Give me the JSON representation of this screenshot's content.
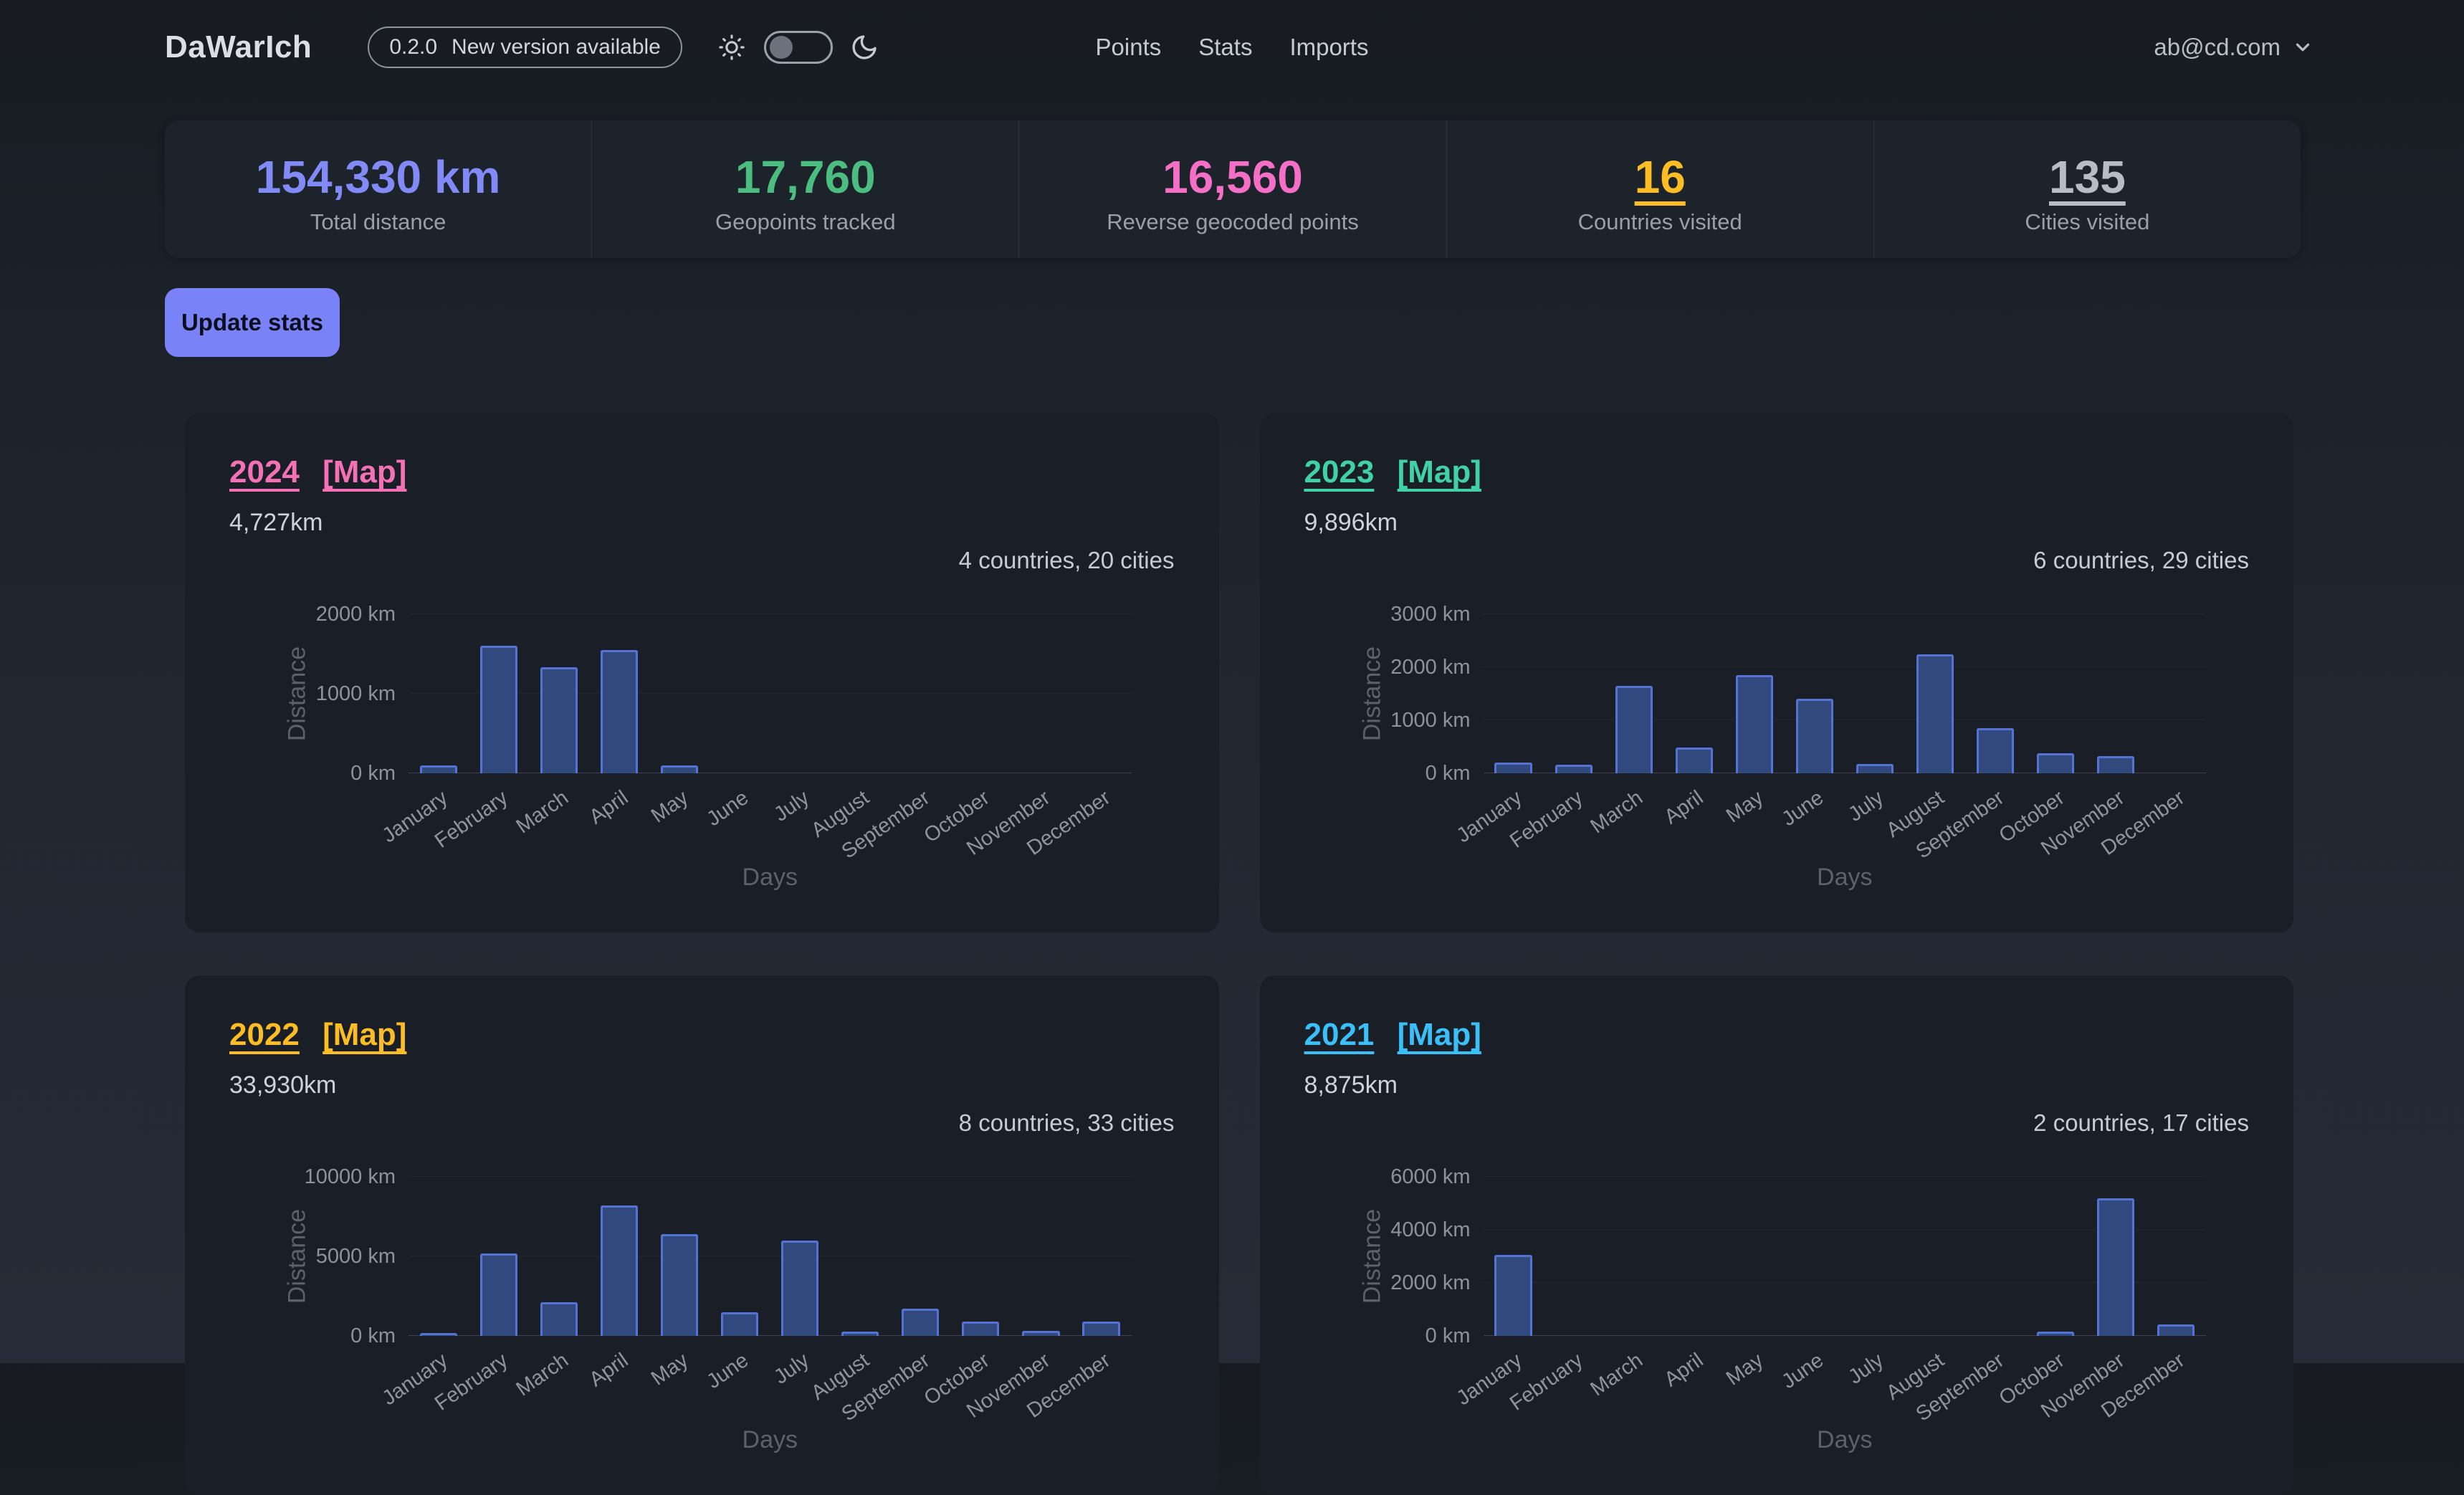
{
  "navbar": {
    "brand": "DaWarIch",
    "version_badge": {
      "version": "0.2.0",
      "label": "New version available"
    },
    "links": [
      "Points",
      "Stats",
      "Imports"
    ],
    "user_email": "ab@cd.com"
  },
  "stats": [
    {
      "value": "154,330 km",
      "label": "Total distance",
      "color": "#828af8",
      "link": false
    },
    {
      "value": "17,760",
      "label": "Geopoints tracked",
      "color": "#4bbd7f",
      "link": false
    },
    {
      "value": "16,560",
      "label": "Reverse geocoded points",
      "color": "#f56fc6",
      "link": false
    },
    {
      "value": "16",
      "label": "Countries visited",
      "color": "#fbbd23",
      "link": true
    },
    {
      "value": "135",
      "label": "Cities visited",
      "color": "#b8bdc5",
      "link": true
    }
  ],
  "update_button_label": "Update stats",
  "year_cards": [
    {
      "year": "2024",
      "map_label": "[Map]",
      "color": "#f471b5",
      "distance": "4,727km",
      "summary": "4 countries, 20 cities"
    },
    {
      "year": "2023",
      "map_label": "[Map]",
      "color": "#41d1a7",
      "distance": "9,896km",
      "summary": "6 countries, 29 cities"
    },
    {
      "year": "2022",
      "map_label": "[Map]",
      "color": "#fbbd23",
      "distance": "33,930km",
      "summary": "8 countries, 33 cities"
    },
    {
      "year": "2021",
      "map_label": "[Map]",
      "color": "#3abff8",
      "distance": "8,875km",
      "summary": "2 countries, 17 cities"
    }
  ],
  "chart_data": [
    {
      "type": "bar",
      "title": "2024 monthly distance",
      "categories": [
        "January",
        "February",
        "March",
        "April",
        "May",
        "June",
        "July",
        "August",
        "September",
        "October",
        "November",
        "December"
      ],
      "values": [
        100,
        1600,
        1330,
        1550,
        100,
        0,
        0,
        0,
        0,
        0,
        0,
        0
      ],
      "xlabel": "Days",
      "ylabel": "Distance",
      "ylim": [
        0,
        2000
      ],
      "yticks": [
        0,
        1000,
        2000
      ],
      "ytick_suffix": " km",
      "grid": true,
      "legend": false
    },
    {
      "type": "bar",
      "title": "2023 monthly distance",
      "categories": [
        "January",
        "February",
        "March",
        "April",
        "May",
        "June",
        "July",
        "August",
        "September",
        "October",
        "November",
        "December"
      ],
      "values": [
        200,
        160,
        1650,
        480,
        1850,
        1400,
        180,
        2250,
        850,
        380,
        330,
        0
      ],
      "xlabel": "Days",
      "ylabel": "Distance",
      "ylim": [
        0,
        3000
      ],
      "yticks": [
        0,
        1000,
        2000,
        3000
      ],
      "ytick_suffix": " km",
      "grid": true,
      "legend": false
    },
    {
      "type": "bar",
      "title": "2022 monthly distance",
      "categories": [
        "January",
        "February",
        "March",
        "April",
        "May",
        "June",
        "July",
        "August",
        "September",
        "October",
        "November",
        "December"
      ],
      "values": [
        200,
        5200,
        2100,
        8200,
        6400,
        1500,
        6000,
        250,
        1700,
        900,
        300,
        900
      ],
      "xlabel": "Days",
      "ylabel": "Distance",
      "ylim": [
        0,
        10000
      ],
      "yticks": [
        0,
        5000,
        10000
      ],
      "ytick_suffix": " km",
      "grid": true,
      "legend": false
    },
    {
      "type": "bar",
      "title": "2021 monthly distance",
      "categories": [
        "January",
        "February",
        "March",
        "April",
        "May",
        "June",
        "July",
        "August",
        "September",
        "October",
        "November",
        "December"
      ],
      "values": [
        3050,
        0,
        0,
        0,
        0,
        0,
        0,
        0,
        0,
        150,
        5200,
        420
      ],
      "xlabel": "Days",
      "ylabel": "Distance",
      "ylim": [
        0,
        6000
      ],
      "yticks": [
        0,
        2000,
        4000,
        6000
      ],
      "ytick_suffix": " km",
      "grid": true,
      "legend": false
    }
  ],
  "colors": {
    "bar_fill": "#32497e",
    "bar_border": "#5473d5",
    "accent_primary": "#7983f7",
    "card_bg": "#1a1f27"
  }
}
